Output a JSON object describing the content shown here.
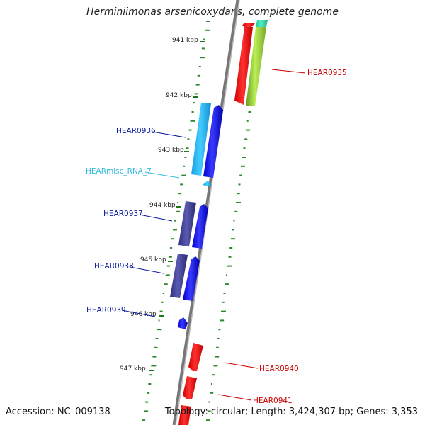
{
  "title": "Herminiimonas arsenicoxydans, complete genome",
  "accession": "Accession: NC_009138",
  "topology": "Topology: circular; Length: 3,424,307 bp; Genes: 3,353",
  "kbp_ticks": [
    {
      "label": "941 kbp"
    },
    {
      "label": "942 kbp"
    },
    {
      "label": "943 kbp"
    },
    {
      "label": "944 kbp"
    },
    {
      "label": "945 kbp"
    },
    {
      "label": "946 kbp"
    },
    {
      "label": "947 kbp"
    }
  ],
  "gene_labels": [
    {
      "text": "HEAR0935",
      "color": "#cc0000"
    },
    {
      "text": "HEAR0936",
      "color": "#0a1aa0"
    },
    {
      "text": "HEARmisc_RNA_7",
      "color": "#33bbdd"
    },
    {
      "text": "HEAR0937",
      "color": "#0a1aa0"
    },
    {
      "text": "HEAR0938",
      "color": "#0a1aa0"
    },
    {
      "text": "HEAR0939",
      "color": "#0a1aa0"
    },
    {
      "text": "HEAR0940",
      "color": "#cc0000"
    },
    {
      "text": "HEAR0941",
      "color": "#cc0000"
    }
  ],
  "colors": {
    "forward_cds": "#0a0ff0",
    "forward_cog": "#3a3a8c",
    "rna": "#22b4ee",
    "reverse_cds": "#ee0000",
    "reverse_cog_green": "#88cc22",
    "reverse_cog_teal": "#22ddaa",
    "backbone": "#888888",
    "gc_dots": "#2a8a2a"
  }
}
